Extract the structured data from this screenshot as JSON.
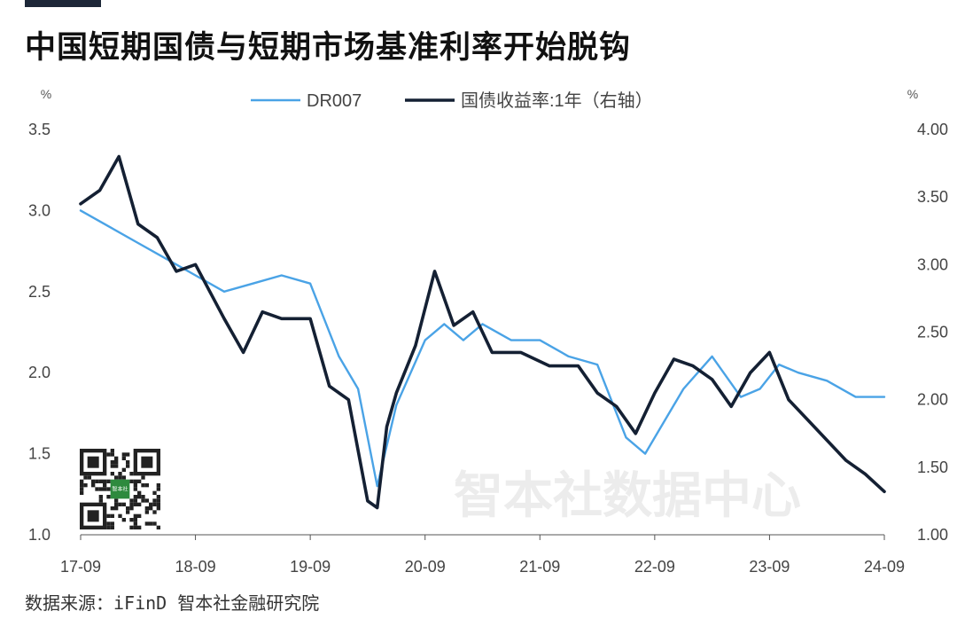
{
  "title": "中国短期国债与短期市场基准利率开始脱钩",
  "source": "数据来源：iFinD 智本社金融研究院",
  "watermark": "智本社数据中心",
  "qr_label": "智本社",
  "colors": {
    "dr007": "#4aa3e6",
    "treasury": "#142033",
    "axis": "#555555"
  },
  "chart_data": {
    "type": "line",
    "legend_position": "top-center",
    "grid": false,
    "left_unit": "%",
    "right_unit": "%",
    "x_ticks": [
      "17-09",
      "18-09",
      "19-09",
      "20-09",
      "21-09",
      "22-09",
      "23-09",
      "24-09"
    ],
    "x_range": [
      "2017-09",
      "2024-09"
    ],
    "ylim_left": [
      1.0,
      3.5
    ],
    "ylim_right": [
      1.0,
      4.0
    ],
    "y_ticks_left": [
      "1.0",
      "1.5",
      "2.0",
      "2.5",
      "3.0",
      "3.5"
    ],
    "y_ticks_right": [
      "1.00",
      "1.50",
      "2.00",
      "2.50",
      "3.00",
      "3.50",
      "4.00"
    ],
    "series": [
      {
        "name": "DR007",
        "axis": "left",
        "x": [
          "2017-09",
          "2017-12",
          "2018-03",
          "2018-06",
          "2018-09",
          "2018-12",
          "2019-03",
          "2019-06",
          "2019-09",
          "2019-12",
          "2020-02",
          "2020-04",
          "2020-06",
          "2020-09",
          "2020-11",
          "2021-01",
          "2021-03",
          "2021-06",
          "2021-09",
          "2021-12",
          "2022-03",
          "2022-06",
          "2022-08",
          "2022-10",
          "2022-12",
          "2023-03",
          "2023-06",
          "2023-08",
          "2023-10",
          "2023-12",
          "2024-03",
          "2024-06",
          "2024-09"
        ],
        "values": [
          3.0,
          2.9,
          2.8,
          2.7,
          2.6,
          2.5,
          2.55,
          2.6,
          2.55,
          2.1,
          1.9,
          1.3,
          1.8,
          2.2,
          2.3,
          2.2,
          2.3,
          2.2,
          2.2,
          2.1,
          2.05,
          1.6,
          1.5,
          1.7,
          1.9,
          2.1,
          1.85,
          1.9,
          2.05,
          2.0,
          1.95,
          1.85,
          1.85
        ]
      },
      {
        "name": "国债收益率:1年（右轴）",
        "axis": "right",
        "x": [
          "2017-09",
          "2017-11",
          "2018-01",
          "2018-03",
          "2018-05",
          "2018-07",
          "2018-09",
          "2018-12",
          "2019-02",
          "2019-04",
          "2019-06",
          "2019-09",
          "2019-11",
          "2020-01",
          "2020-03",
          "2020-04",
          "2020-05",
          "2020-06",
          "2020-08",
          "2020-10",
          "2020-12",
          "2021-02",
          "2021-04",
          "2021-07",
          "2021-10",
          "2022-01",
          "2022-03",
          "2022-05",
          "2022-07",
          "2022-09",
          "2022-11",
          "2023-01",
          "2023-03",
          "2023-05",
          "2023-07",
          "2023-09",
          "2023-11",
          "2024-01",
          "2024-03",
          "2024-05",
          "2024-07",
          "2024-09"
        ],
        "values": [
          3.45,
          3.55,
          3.8,
          3.3,
          3.2,
          2.95,
          3.0,
          2.6,
          2.35,
          2.65,
          2.6,
          2.6,
          2.1,
          2.0,
          1.25,
          1.2,
          1.8,
          2.05,
          2.4,
          2.95,
          2.55,
          2.65,
          2.35,
          2.35,
          2.25,
          2.25,
          2.05,
          1.95,
          1.75,
          2.05,
          2.3,
          2.25,
          2.15,
          1.95,
          2.2,
          2.35,
          2.0,
          1.85,
          1.7,
          1.55,
          1.45,
          1.32
        ]
      }
    ]
  }
}
